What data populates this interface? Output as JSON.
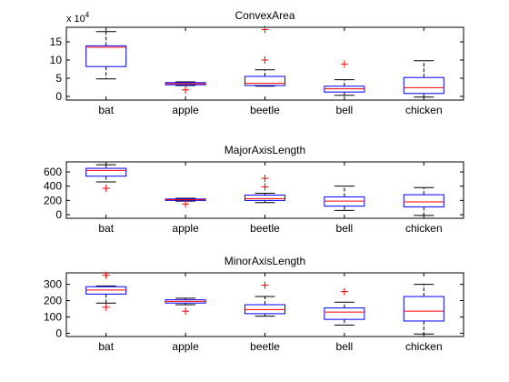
{
  "chart_data": [
    {
      "type": "boxplot",
      "title": "ConvexArea",
      "exponent_label": "x 10",
      "exponent_power": "4",
      "categories": [
        "bat",
        "apple",
        "beetle",
        "bell",
        "chicken"
      ],
      "ylim": [
        -1,
        19
      ],
      "yticks": [
        0,
        5,
        10,
        15
      ],
      "ytick_labels": [
        "0",
        "5",
        "10",
        "15"
      ],
      "boxes": [
        {
          "whisker_low": 4.8,
          "q1": 8.2,
          "median": 13.5,
          "q3": 13.9,
          "whisker_high": 17.8,
          "outliers": []
        },
        {
          "whisker_low": 3.0,
          "q1": 3.2,
          "median": 3.5,
          "q3": 3.8,
          "whisker_high": 4.0,
          "outliers": [
            1.8
          ]
        },
        {
          "whisker_low": 2.8,
          "q1": 3.0,
          "median": 3.6,
          "q3": 5.5,
          "whisker_high": 7.3,
          "outliers": [
            10.0,
            18.4
          ]
        },
        {
          "whisker_low": 0.3,
          "q1": 1.2,
          "median": 2.1,
          "q3": 2.8,
          "whisker_high": 4.6,
          "outliers": [
            8.9
          ]
        },
        {
          "whisker_low": -0.2,
          "q1": 0.8,
          "median": 2.4,
          "q3": 5.2,
          "whisker_high": 9.8,
          "outliers": []
        }
      ]
    },
    {
      "type": "boxplot",
      "title": "MajorAxisLength",
      "categories": [
        "bat",
        "apple",
        "beetle",
        "bell",
        "chicken"
      ],
      "ylim": [
        -50,
        740
      ],
      "yticks": [
        0,
        200,
        400,
        600
      ],
      "ytick_labels": [
        "0",
        "200",
        "400",
        "600"
      ],
      "boxes": [
        {
          "whisker_low": 460,
          "q1": 540,
          "median": 620,
          "q3": 650,
          "whisker_high": 700,
          "outliers": [
            370
          ]
        },
        {
          "whisker_low": 190,
          "q1": 200,
          "median": 210,
          "q3": 220,
          "whisker_high": 230,
          "outliers": [
            150
          ]
        },
        {
          "whisker_low": 170,
          "q1": 200,
          "median": 225,
          "q3": 275,
          "whisker_high": 300,
          "outliers": [
            390,
            510
          ]
        },
        {
          "whisker_low": 60,
          "q1": 120,
          "median": 190,
          "q3": 250,
          "whisker_high": 400,
          "outliers": []
        },
        {
          "whisker_low": -10,
          "q1": 110,
          "median": 180,
          "q3": 280,
          "whisker_high": 380,
          "outliers": []
        }
      ]
    },
    {
      "type": "boxplot",
      "title": "MinorAxisLength",
      "categories": [
        "bat",
        "apple",
        "beetle",
        "bell",
        "chicken"
      ],
      "ylim": [
        -20,
        370
      ],
      "yticks": [
        0,
        100,
        200,
        300
      ],
      "ytick_labels": [
        "0",
        "100",
        "200",
        "300"
      ],
      "boxes": [
        {
          "whisker_low": 185,
          "q1": 240,
          "median": 265,
          "q3": 285,
          "whisker_high": 290,
          "outliers": [
            355,
            160
          ]
        },
        {
          "whisker_low": 175,
          "q1": 185,
          "median": 195,
          "q3": 205,
          "whisker_high": 215,
          "outliers": [
            135
          ]
        },
        {
          "whisker_low": 105,
          "q1": 120,
          "median": 145,
          "q3": 175,
          "whisker_high": 225,
          "outliers": [
            295
          ]
        },
        {
          "whisker_low": 50,
          "q1": 85,
          "median": 130,
          "q3": 155,
          "whisker_high": 190,
          "outliers": [
            255
          ]
        },
        {
          "whisker_low": -5,
          "q1": 75,
          "median": 135,
          "q3": 225,
          "whisker_high": 300,
          "outliers": []
        }
      ]
    }
  ],
  "colors": {
    "box": "#0000ff",
    "median": "#ff0000",
    "outlier": "#ff0000",
    "whisker": "#000000",
    "axes": "#000000"
  }
}
